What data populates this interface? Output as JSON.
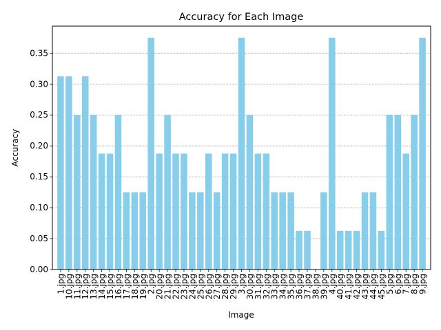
{
  "chart_data": {
    "type": "bar",
    "title": "Accuracy for Each Image",
    "xlabel": "Image",
    "ylabel": "Accuracy",
    "categories": [
      "1.jpg",
      "10.jpg",
      "11.jpg",
      "12.jpg",
      "13.jpg",
      "14.jpg",
      "15.jpg",
      "16.jpg",
      "17.jpg",
      "18.jpg",
      "19.jpg",
      "2.jpg",
      "20.jpg",
      "21.jpg",
      "22.jpg",
      "23.jpg",
      "24.jpg",
      "25.jpg",
      "26.jpg",
      "27.jpg",
      "28.jpg",
      "29.jpg",
      "3.jpg",
      "30.jpg",
      "31.jpg",
      "32.jpg",
      "33.jpg",
      "34.jpg",
      "35.jpg",
      "36.jpg",
      "37.jpg",
      "38.jpg",
      "39.jpg",
      "4.jpg",
      "40.jpg",
      "41.jpg",
      "42.jpg",
      "43.jpg",
      "44.jpg",
      "45.jpg",
      "5.jpg",
      "6.jpg",
      "7.jpg",
      "8.jpg",
      "9.jpg"
    ],
    "values": [
      0.3125,
      0.3125,
      0.25,
      0.3125,
      0.25,
      0.1875,
      0.1875,
      0.25,
      0.125,
      0.125,
      0.125,
      0.375,
      0.1875,
      0.25,
      0.1875,
      0.1875,
      0.125,
      0.125,
      0.1875,
      0.125,
      0.1875,
      0.1875,
      0.375,
      0.25,
      0.1875,
      0.1875,
      0.125,
      0.125,
      0.125,
      0.0625,
      0.0625,
      0.0,
      0.125,
      0.375,
      0.0625,
      0.0625,
      0.0625,
      0.125,
      0.125,
      0.0625,
      0.25,
      0.25,
      0.1875,
      0.25,
      0.375
    ],
    "ylim": [
      0,
      0.39375
    ],
    "yticks": [
      0.0,
      0.05,
      0.1,
      0.15,
      0.2,
      0.25,
      0.3,
      0.35
    ],
    "ytick_labels": [
      "0.00",
      "0.05",
      "0.10",
      "0.15",
      "0.20",
      "0.25",
      "0.30",
      "0.35"
    ],
    "grid": "y-dashed",
    "bar_color": "#87ceeb",
    "grid_color": "#b0b0b0"
  }
}
